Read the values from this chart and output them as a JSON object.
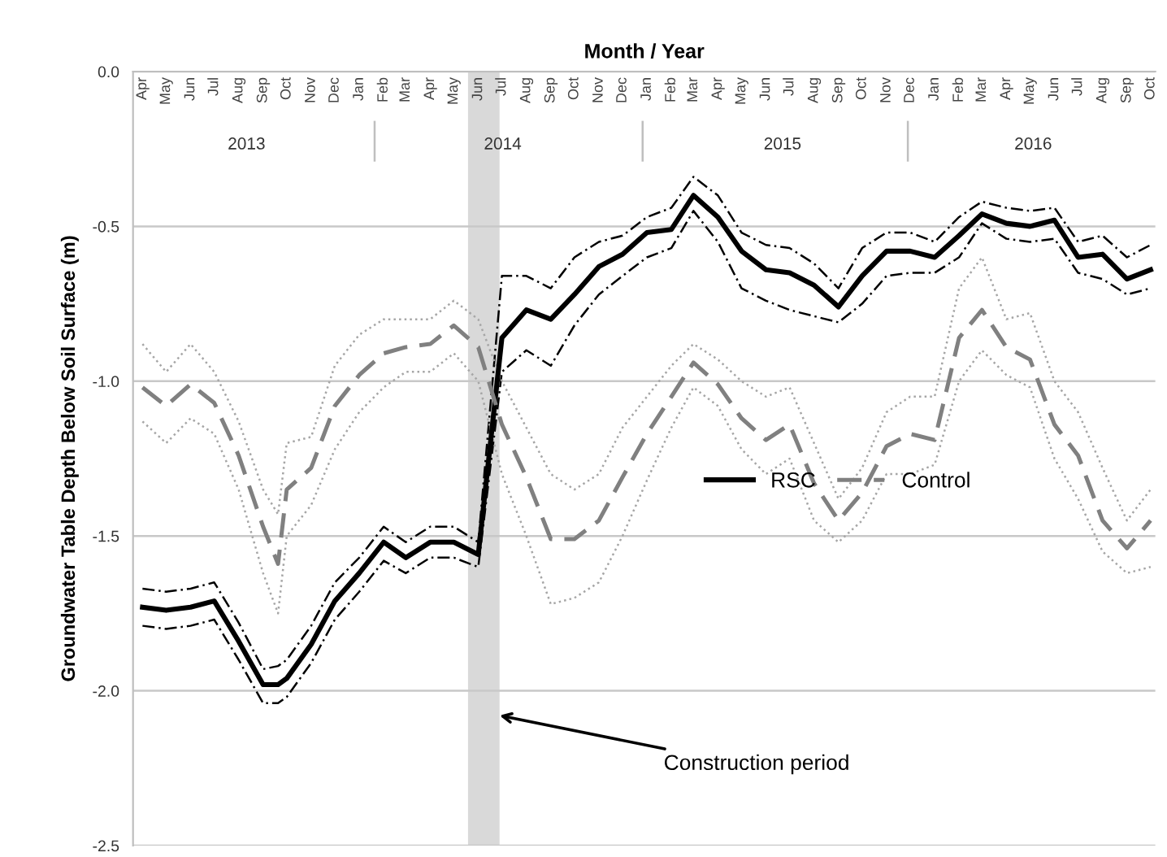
{
  "chart_data": {
    "type": "line",
    "xlabel": "Month / Year",
    "ylabel": "Groundwater Table Depth Below Soil Surface (m)",
    "x": [
      "2013-04-01",
      "2013-05-01",
      "2013-06-01",
      "2013-07-01",
      "2013-08-01",
      "2013-09-01",
      "2013-09-20",
      "2013-10-01",
      "2013-11-01",
      "2013-12-01",
      "2014-01-01",
      "2014-02-01",
      "2014-03-01",
      "2014-04-01",
      "2014-05-01",
      "2014-06-01",
      "2014-07-01",
      "2014-08-01",
      "2014-09-01",
      "2014-10-01",
      "2014-11-01",
      "2014-12-01",
      "2015-01-01",
      "2015-02-01",
      "2015-03-01",
      "2015-04-01",
      "2015-05-01",
      "2015-06-01",
      "2015-07-01",
      "2015-08-01",
      "2015-09-01",
      "2015-10-01",
      "2015-11-01",
      "2015-12-01",
      "2016-01-01",
      "2016-02-01",
      "2016-03-01",
      "2016-04-01",
      "2016-05-01",
      "2016-06-01",
      "2016-07-01",
      "2016-08-01",
      "2016-09-01",
      "2016-10-01"
    ],
    "series": [
      {
        "name": "RSC",
        "color": "#000000",
        "line_style": "solid",
        "values": [
          -1.73,
          -1.74,
          -1.73,
          -1.71,
          -1.84,
          -1.98,
          -1.98,
          -1.96,
          -1.85,
          -1.71,
          -1.62,
          -1.52,
          -1.57,
          -1.52,
          -1.52,
          -1.56,
          -0.86,
          -0.77,
          -0.8,
          -0.72,
          -0.63,
          -0.59,
          -0.52,
          -0.51,
          -0.4,
          -0.47,
          -0.58,
          -0.64,
          -0.65,
          -0.69,
          -0.76,
          -0.66,
          -0.58,
          -0.58,
          -0.6,
          -0.53,
          -0.46,
          -0.49,
          -0.5,
          -0.48,
          -0.6,
          -0.59,
          -0.67,
          -0.64
        ]
      },
      {
        "color": "#000000",
        "line_style": "dashdot",
        "values": [
          -1.67,
          -1.68,
          -1.67,
          -1.65,
          -1.78,
          -1.93,
          -1.92,
          -1.9,
          -1.79,
          -1.65,
          -1.57,
          -1.47,
          -1.52,
          -1.47,
          -1.47,
          -1.52,
          -0.66,
          -0.66,
          -0.7,
          -0.6,
          -0.55,
          -0.53,
          -0.47,
          -0.44,
          -0.34,
          -0.4,
          -0.52,
          -0.56,
          -0.57,
          -0.62,
          -0.7,
          -0.57,
          -0.52,
          -0.52,
          -0.55,
          -0.47,
          -0.42,
          -0.44,
          -0.45,
          -0.44,
          -0.55,
          -0.53,
          -0.6,
          -0.56
        ]
      },
      {
        "color": "#000000",
        "line_style": "dashdot",
        "values": [
          -1.79,
          -1.8,
          -1.79,
          -1.77,
          -1.9,
          -2.04,
          -2.04,
          -2.02,
          -1.91,
          -1.77,
          -1.68,
          -1.58,
          -1.62,
          -1.57,
          -1.57,
          -1.6,
          -0.97,
          -0.9,
          -0.95,
          -0.82,
          -0.72,
          -0.66,
          -0.6,
          -0.57,
          -0.45,
          -0.55,
          -0.7,
          -0.74,
          -0.77,
          -0.79,
          -0.81,
          -0.75,
          -0.66,
          -0.65,
          -0.65,
          -0.6,
          -0.49,
          -0.54,
          -0.55,
          -0.54,
          -0.65,
          -0.67,
          -0.72,
          -0.7
        ]
      },
      {
        "name": "Control",
        "color": "#808080",
        "line_style": "dashed",
        "values": [
          -1.02,
          -1.08,
          -1.01,
          -1.07,
          -1.24,
          -1.47,
          -1.59,
          -1.35,
          -1.28,
          -1.08,
          -0.98,
          -0.91,
          -0.89,
          -0.88,
          -0.82,
          -0.89,
          -1.14,
          -1.31,
          -1.51,
          -1.51,
          -1.45,
          -1.31,
          -1.17,
          -1.05,
          -0.94,
          -1.01,
          -1.12,
          -1.19,
          -1.14,
          -1.33,
          -1.45,
          -1.36,
          -1.21,
          -1.17,
          -1.19,
          -0.86,
          -0.77,
          -0.89,
          -0.93,
          -1.14,
          -1.24,
          -1.45,
          -1.54,
          -1.45
        ]
      },
      {
        "color": "#a6a6a6",
        "line_style": "dotted",
        "values": [
          -0.88,
          -0.97,
          -0.88,
          -0.97,
          -1.13,
          -1.35,
          -1.43,
          -1.2,
          -1.18,
          -0.95,
          -0.85,
          -0.8,
          -0.8,
          -0.8,
          -0.74,
          -0.8,
          -1.0,
          -1.15,
          -1.3,
          -1.35,
          -1.3,
          -1.15,
          -1.05,
          -0.95,
          -0.88,
          -0.93,
          -1.0,
          -1.05,
          -1.02,
          -1.2,
          -1.38,
          -1.28,
          -1.1,
          -1.05,
          -1.05,
          -0.7,
          -0.6,
          -0.8,
          -0.78,
          -1.0,
          -1.1,
          -1.28,
          -1.45,
          -1.35
        ]
      },
      {
        "color": "#a6a6a6",
        "line_style": "dotted",
        "values": [
          -1.13,
          -1.2,
          -1.12,
          -1.17,
          -1.35,
          -1.62,
          -1.75,
          -1.5,
          -1.4,
          -1.22,
          -1.1,
          -1.02,
          -0.97,
          -0.97,
          -0.91,
          -1.0,
          -1.3,
          -1.5,
          -1.72,
          -1.7,
          -1.65,
          -1.5,
          -1.32,
          -1.15,
          -1.02,
          -1.08,
          -1.22,
          -1.3,
          -1.25,
          -1.45,
          -1.52,
          -1.45,
          -1.3,
          -1.3,
          -1.27,
          -1.0,
          -0.9,
          -0.98,
          -1.02,
          -1.25,
          -1.38,
          -1.55,
          -1.62,
          -1.6
        ]
      }
    ],
    "xlim": [
      "2013-03-20",
      "2016-10-07"
    ],
    "xticks": [
      {
        "value": "2013-04-01",
        "label": "Apr"
      },
      {
        "value": "2013-05-01",
        "label": "May"
      },
      {
        "value": "2013-06-01",
        "label": "Jun"
      },
      {
        "value": "2013-07-01",
        "label": "Jul"
      },
      {
        "value": "2013-08-01",
        "label": "Aug"
      },
      {
        "value": "2013-09-01",
        "label": "Sep"
      },
      {
        "value": "2013-10-01",
        "label": "Oct"
      },
      {
        "value": "2013-11-01",
        "label": "Nov"
      },
      {
        "value": "2013-12-01",
        "label": "Dec"
      },
      {
        "value": "2014-01-01",
        "label": "Jan"
      },
      {
        "value": "2014-02-01",
        "label": "Feb"
      },
      {
        "value": "2014-03-01",
        "label": "Mar"
      },
      {
        "value": "2014-04-01",
        "label": "Apr"
      },
      {
        "value": "2014-05-01",
        "label": "May"
      },
      {
        "value": "2014-06-01",
        "label": "Jun"
      },
      {
        "value": "2014-07-01",
        "label": "Jul"
      },
      {
        "value": "2014-08-01",
        "label": "Aug"
      },
      {
        "value": "2014-09-01",
        "label": "Sep"
      },
      {
        "value": "2014-10-01",
        "label": "Oct"
      },
      {
        "value": "2014-11-01",
        "label": "Nov"
      },
      {
        "value": "2014-12-01",
        "label": "Dec"
      },
      {
        "value": "2015-01-01",
        "label": "Jan"
      },
      {
        "value": "2015-02-01",
        "label": "Feb"
      },
      {
        "value": "2015-03-01",
        "label": "Mar"
      },
      {
        "value": "2015-04-01",
        "label": "Apr"
      },
      {
        "value": "2015-05-01",
        "label": "May"
      },
      {
        "value": "2015-06-01",
        "label": "Jun"
      },
      {
        "value": "2015-07-01",
        "label": "Jul"
      },
      {
        "value": "2015-08-01",
        "label": "Aug"
      },
      {
        "value": "2015-09-01",
        "label": "Sep"
      },
      {
        "value": "2015-10-01",
        "label": "Oct"
      },
      {
        "value": "2015-11-01",
        "label": "Nov"
      },
      {
        "value": "2015-12-01",
        "label": "Dec"
      },
      {
        "value": "2016-01-01",
        "label": "Jan"
      },
      {
        "value": "2016-02-01",
        "label": "Feb"
      },
      {
        "value": "2016-03-01",
        "label": "Mar"
      },
      {
        "value": "2016-04-01",
        "label": "Apr"
      },
      {
        "value": "2016-05-01",
        "label": "May"
      },
      {
        "value": "2016-06-01",
        "label": "Jun"
      },
      {
        "value": "2016-07-01",
        "label": "Jul"
      },
      {
        "value": "2016-08-01",
        "label": "Aug"
      },
      {
        "value": "2016-09-01",
        "label": "Sep"
      },
      {
        "value": "2016-10-01",
        "label": "Oct"
      }
    ],
    "x2lim": [
      "2013-03-20",
      "2016-10-07"
    ],
    "x2ticks": [
      {
        "value": "2013-08-11",
        "label": "2013"
      },
      {
        "value": "2014-07-02",
        "label": "2014"
      },
      {
        "value": "2015-06-22",
        "label": "2015"
      },
      {
        "value": "2016-05-05",
        "label": "2016"
      }
    ],
    "ylim": [
      -2.5,
      0.0
    ],
    "yticks": [
      {
        "value": -2.5,
        "label": "-2.5"
      },
      {
        "value": -2.0,
        "label": "-2.0"
      },
      {
        "value": -1.5,
        "label": "-1.5"
      },
      {
        "value": -1.0,
        "label": "-1.0"
      },
      {
        "value": -0.5,
        "label": "-0.5"
      },
      {
        "value": 0.0,
        "label": "0.0"
      }
    ],
    "bands": [
      {
        "axis": "x",
        "from": "2014-05-19",
        "to": "2014-06-28",
        "label": "Construction period",
        "color": "#d9d9d9"
      }
    ],
    "grid": "y",
    "legend": "center right"
  }
}
